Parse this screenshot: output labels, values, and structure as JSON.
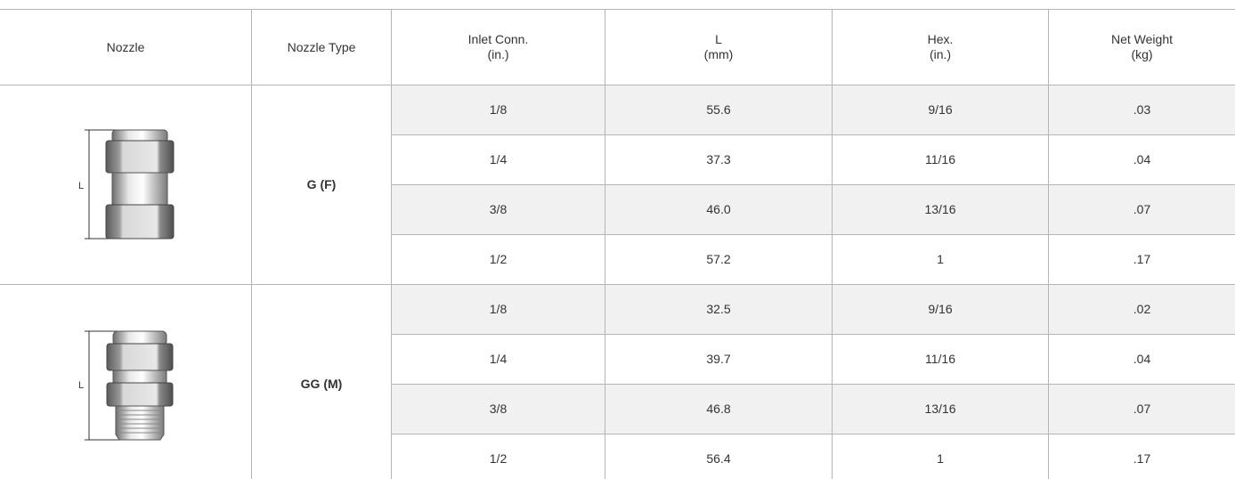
{
  "header": [
    [
      "Nozzle"
    ],
    [
      "Nozzle Type"
    ],
    [
      "Inlet Conn.",
      "(in.)"
    ],
    [
      "L",
      "(mm)"
    ],
    [
      "Hex.",
      "(in.)"
    ],
    [
      "Net Weight",
      "(kg)"
    ]
  ],
  "groups": [
    {
      "dimension_label": "L",
      "type": "G (F)",
      "rows": [
        [
          "1/8",
          "55.6",
          "9/16",
          ".03"
        ],
        [
          "1/4",
          "37.3",
          "11/16",
          ".04"
        ],
        [
          "3/8",
          "46.0",
          "13/16",
          ".07"
        ],
        [
          "1/2",
          "57.2",
          "1",
          ".17"
        ]
      ]
    },
    {
      "dimension_label": "L",
      "type": "GG (M)",
      "rows": [
        [
          "1/8",
          "32.5",
          "9/16",
          ".02"
        ],
        [
          "1/4",
          "39.7",
          "11/16",
          ".04"
        ],
        [
          "3/8",
          "46.8",
          "13/16",
          ".07"
        ],
        [
          "1/2",
          "56.4",
          "1",
          ".17"
        ]
      ]
    }
  ]
}
